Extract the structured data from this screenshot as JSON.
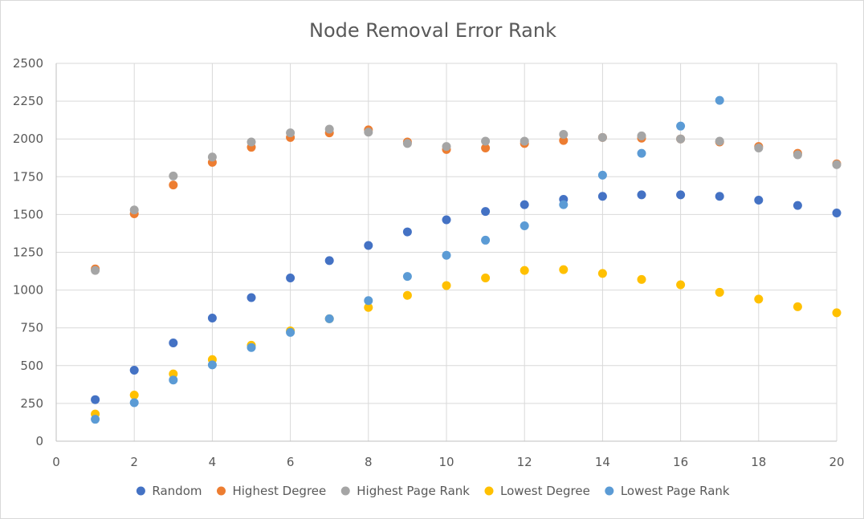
{
  "chart_data": {
    "type": "scatter",
    "title": "Node Removal Error Rank",
    "xlabel": "",
    "ylabel": "",
    "xlim": [
      0,
      20
    ],
    "ylim": [
      0,
      2500
    ],
    "x_ticks": [
      "0",
      "2",
      "4",
      "6",
      "8",
      "10",
      "12",
      "14",
      "16",
      "18",
      "20"
    ],
    "y_ticks": [
      "0",
      "250",
      "500",
      "750",
      "1000",
      "1250",
      "1500",
      "1750",
      "2000",
      "2250",
      "2500"
    ],
    "grid": true,
    "legend_position": "bottom",
    "series": [
      {
        "name": "Random",
        "color": "#4472C4",
        "x": [
          1,
          2,
          3,
          4,
          5,
          6,
          7,
          8,
          9,
          10,
          11,
          12,
          13,
          14,
          15,
          16,
          17,
          18,
          19,
          20
        ],
        "y": [
          275,
          470,
          650,
          815,
          950,
          1080,
          1195,
          1295,
          1385,
          1465,
          1520,
          1565,
          1600,
          1620,
          1630,
          1630,
          1620,
          1595,
          1560,
          1510
        ]
      },
      {
        "name": "Highest Degree",
        "color": "#ED7D31",
        "x": [
          1,
          2,
          3,
          4,
          5,
          6,
          7,
          8,
          9,
          10,
          11,
          12,
          13,
          14,
          15,
          16,
          17,
          18,
          19,
          20
        ],
        "y": [
          1140,
          1505,
          1695,
          1845,
          1945,
          2010,
          2040,
          2060,
          1980,
          1930,
          1940,
          1970,
          1990,
          2010,
          2005,
          2000,
          1980,
          1950,
          1905,
          1835
        ]
      },
      {
        "name": "Highest Page Rank",
        "color": "#A5A5A5",
        "x": [
          1,
          2,
          3,
          4,
          5,
          6,
          7,
          8,
          9,
          10,
          11,
          12,
          13,
          14,
          15,
          16,
          17,
          18,
          19,
          20
        ],
        "y": [
          1130,
          1530,
          1755,
          1880,
          1980,
          2040,
          2065,
          2045,
          1970,
          1950,
          1985,
          1985,
          2030,
          2010,
          2020,
          2000,
          1985,
          1940,
          1895,
          1830
        ]
      },
      {
        "name": "Lowest Degree",
        "color": "#FFC000",
        "x": [
          1,
          2,
          3,
          4,
          5,
          6,
          7,
          8,
          9,
          10,
          11,
          12,
          13,
          14,
          15,
          16,
          17,
          18,
          19,
          20
        ],
        "y": [
          180,
          305,
          445,
          540,
          635,
          730,
          810,
          885,
          965,
          1030,
          1080,
          1130,
          1135,
          1110,
          1070,
          1035,
          985,
          940,
          890,
          850
        ]
      },
      {
        "name": "Lowest Page Rank",
        "color": "#5B9BD5",
        "x": [
          1,
          2,
          3,
          4,
          5,
          6,
          7,
          8,
          9,
          10,
          11,
          12,
          13,
          14,
          15,
          16,
          17
        ],
        "y": [
          145,
          255,
          405,
          505,
          620,
          720,
          810,
          930,
          1090,
          1230,
          1330,
          1425,
          1565,
          1760,
          1905,
          2085,
          2255
        ]
      }
    ]
  }
}
